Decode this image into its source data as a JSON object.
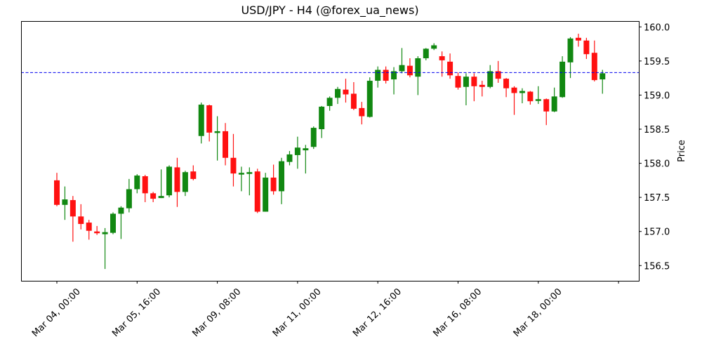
{
  "chart_data": {
    "type": "candlestick",
    "title": "USD/JPY - H4 (@forex_ua_news)",
    "xlabel": "",
    "ylabel": "Price",
    "y_axis_side": "right",
    "ylim": [
      156.28,
      160.08
    ],
    "yticks": [
      156.5,
      157.0,
      157.5,
      158.0,
      158.5,
      159.0,
      159.5,
      160.0
    ],
    "ytick_labels": [
      "156.5",
      "157.0",
      "157.5",
      "158.0",
      "158.5",
      "159.0",
      "159.5",
      "160.0"
    ],
    "xtick_labels": [
      "Mar 04, 00:00",
      "Mar 05, 16:00",
      "Mar 09, 08:00",
      "Mar 11, 00:00",
      "Mar 12, 16:00",
      "Mar 16, 08:00",
      "Mar 18, 00:00",
      ""
    ],
    "xtick_candle_index": [
      0,
      10,
      20,
      30,
      40,
      50,
      60,
      70
    ],
    "grid": false,
    "up_color": "#118811",
    "down_color": "#ff1111",
    "reference_line": {
      "value": 159.33,
      "color": "#0000ee",
      "style": "dashed"
    },
    "candles": [
      {
        "o": 157.75,
        "h": 157.86,
        "l": 157.37,
        "c": 157.39
      },
      {
        "o": 157.39,
        "h": 157.66,
        "l": 157.17,
        "c": 157.47
      },
      {
        "o": 157.46,
        "h": 157.52,
        "l": 156.85,
        "c": 157.22
      },
      {
        "o": 157.22,
        "h": 157.4,
        "l": 157.03,
        "c": 157.11
      },
      {
        "o": 157.13,
        "h": 157.17,
        "l": 156.88,
        "c": 157.01
      },
      {
        "o": 157.0,
        "h": 157.08,
        "l": 156.95,
        "c": 156.98
      },
      {
        "o": 156.96,
        "h": 157.05,
        "l": 156.45,
        "c": 156.99
      },
      {
        "o": 156.98,
        "h": 157.28,
        "l": 156.96,
        "c": 157.26
      },
      {
        "o": 157.26,
        "h": 157.37,
        "l": 156.89,
        "c": 157.35
      },
      {
        "o": 157.34,
        "h": 157.77,
        "l": 157.28,
        "c": 157.62
      },
      {
        "o": 157.62,
        "h": 157.84,
        "l": 157.56,
        "c": 157.82
      },
      {
        "o": 157.81,
        "h": 157.83,
        "l": 157.43,
        "c": 157.56
      },
      {
        "o": 157.56,
        "h": 157.58,
        "l": 157.43,
        "c": 157.48
      },
      {
        "o": 157.49,
        "h": 157.91,
        "l": 157.49,
        "c": 157.52
      },
      {
        "o": 157.53,
        "h": 157.97,
        "l": 157.5,
        "c": 157.95
      },
      {
        "o": 157.94,
        "h": 158.08,
        "l": 157.36,
        "c": 157.58
      },
      {
        "o": 157.58,
        "h": 157.89,
        "l": 157.52,
        "c": 157.87
      },
      {
        "o": 157.88,
        "h": 157.97,
        "l": 157.75,
        "c": 157.77
      },
      {
        "o": 158.4,
        "h": 158.89,
        "l": 158.29,
        "c": 158.86
      },
      {
        "o": 158.85,
        "h": 158.86,
        "l": 158.32,
        "c": 158.45
      },
      {
        "o": 158.46,
        "h": 158.69,
        "l": 158.04,
        "c": 158.47
      },
      {
        "o": 158.47,
        "h": 158.59,
        "l": 157.97,
        "c": 158.08
      },
      {
        "o": 158.08,
        "h": 158.43,
        "l": 157.66,
        "c": 157.85
      },
      {
        "o": 157.85,
        "h": 157.95,
        "l": 157.59,
        "c": 157.86
      },
      {
        "o": 157.86,
        "h": 157.94,
        "l": 157.53,
        "c": 157.87
      },
      {
        "o": 157.88,
        "h": 157.92,
        "l": 157.27,
        "c": 157.29
      },
      {
        "o": 157.29,
        "h": 157.86,
        "l": 157.29,
        "c": 157.79
      },
      {
        "o": 157.79,
        "h": 157.98,
        "l": 157.54,
        "c": 157.59
      },
      {
        "o": 157.59,
        "h": 158.08,
        "l": 157.4,
        "c": 158.03
      },
      {
        "o": 158.02,
        "h": 158.18,
        "l": 157.97,
        "c": 158.13
      },
      {
        "o": 158.12,
        "h": 158.39,
        "l": 157.92,
        "c": 158.23
      },
      {
        "o": 158.19,
        "h": 158.27,
        "l": 157.85,
        "c": 158.22
      },
      {
        "o": 158.24,
        "h": 158.54,
        "l": 158.21,
        "c": 158.52
      },
      {
        "o": 158.5,
        "h": 158.84,
        "l": 158.37,
        "c": 158.83
      },
      {
        "o": 158.84,
        "h": 158.98,
        "l": 158.77,
        "c": 158.96
      },
      {
        "o": 158.96,
        "h": 159.12,
        "l": 158.87,
        "c": 159.09
      },
      {
        "o": 159.08,
        "h": 159.24,
        "l": 158.89,
        "c": 159.01
      },
      {
        "o": 159.02,
        "h": 159.19,
        "l": 158.78,
        "c": 158.8
      },
      {
        "o": 158.81,
        "h": 158.9,
        "l": 158.57,
        "c": 158.69
      },
      {
        "o": 158.68,
        "h": 159.26,
        "l": 158.67,
        "c": 159.21
      },
      {
        "o": 159.21,
        "h": 159.42,
        "l": 159.11,
        "c": 159.37
      },
      {
        "o": 159.37,
        "h": 159.42,
        "l": 159.17,
        "c": 159.21
      },
      {
        "o": 159.23,
        "h": 159.41,
        "l": 159.01,
        "c": 159.35
      },
      {
        "o": 159.35,
        "h": 159.69,
        "l": 159.32,
        "c": 159.44
      },
      {
        "o": 159.43,
        "h": 159.54,
        "l": 159.26,
        "c": 159.29
      },
      {
        "o": 159.27,
        "h": 159.57,
        "l": 159.0,
        "c": 159.54
      },
      {
        "o": 159.54,
        "h": 159.69,
        "l": 159.51,
        "c": 159.68
      },
      {
        "o": 159.68,
        "h": 159.76,
        "l": 159.66,
        "c": 159.73
      },
      {
        "o": 159.57,
        "h": 159.64,
        "l": 159.27,
        "c": 159.51
      },
      {
        "o": 159.49,
        "h": 159.61,
        "l": 159.24,
        "c": 159.29
      },
      {
        "o": 159.28,
        "h": 159.33,
        "l": 159.08,
        "c": 159.11
      },
      {
        "o": 159.12,
        "h": 159.32,
        "l": 158.85,
        "c": 159.27
      },
      {
        "o": 159.27,
        "h": 159.32,
        "l": 158.91,
        "c": 159.13
      },
      {
        "o": 159.15,
        "h": 159.21,
        "l": 158.98,
        "c": 159.12
      },
      {
        "o": 159.12,
        "h": 159.44,
        "l": 159.1,
        "c": 159.35
      },
      {
        "o": 159.35,
        "h": 159.5,
        "l": 159.18,
        "c": 159.24
      },
      {
        "o": 159.24,
        "h": 159.25,
        "l": 158.97,
        "c": 159.1
      },
      {
        "o": 159.11,
        "h": 159.13,
        "l": 158.71,
        "c": 159.03
      },
      {
        "o": 159.03,
        "h": 159.1,
        "l": 158.88,
        "c": 159.06
      },
      {
        "o": 159.05,
        "h": 159.06,
        "l": 158.86,
        "c": 158.91
      },
      {
        "o": 158.92,
        "h": 159.13,
        "l": 158.87,
        "c": 158.94
      },
      {
        "o": 158.94,
        "h": 158.95,
        "l": 158.56,
        "c": 158.76
      },
      {
        "o": 158.76,
        "h": 159.11,
        "l": 158.75,
        "c": 158.98
      },
      {
        "o": 158.97,
        "h": 159.57,
        "l": 158.96,
        "c": 159.49
      },
      {
        "o": 159.48,
        "h": 159.85,
        "l": 159.25,
        "c": 159.83
      },
      {
        "o": 159.84,
        "h": 159.9,
        "l": 159.71,
        "c": 159.8
      },
      {
        "o": 159.8,
        "h": 159.84,
        "l": 159.53,
        "c": 159.6
      },
      {
        "o": 159.62,
        "h": 159.8,
        "l": 159.2,
        "c": 159.22
      },
      {
        "o": 159.23,
        "h": 159.37,
        "l": 159.02,
        "c": 159.32
      }
    ]
  }
}
